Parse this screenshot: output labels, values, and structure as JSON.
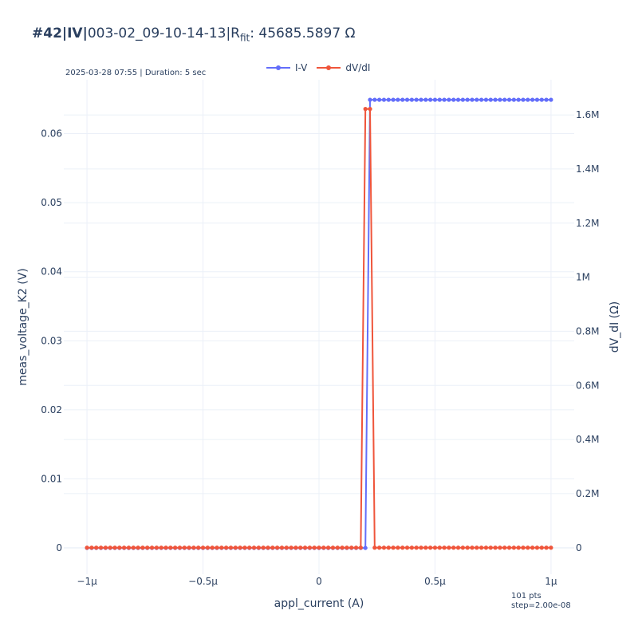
{
  "header": {
    "id_label": "#42|IV|",
    "name": "003-02_09-10-14-13|R",
    "fit_sub": "fit",
    "fit_value": ": 45685.5897 Ω"
  },
  "subnote": "2025-03-28 07:55 | Duration: 5 sec",
  "footnote": {
    "line1": "101 pts",
    "line2": "step=2.00e-08"
  },
  "chart_data": {
    "type": "line",
    "xlabel": "appl_current (A)",
    "ylabel": "meas_voltage_K2 (V)",
    "y2label": "dV_dI (Ω)",
    "xlim": [
      -1.1e-06,
      1.1e-06
    ],
    "ylim": [
      -0.0038,
      0.0678
    ],
    "y2lim": [
      -98000,
      1730000
    ],
    "x_ticks": [
      {
        "value": -1e-06,
        "label": "−1μ"
      },
      {
        "value": -5e-07,
        "label": "−0.5μ"
      },
      {
        "value": 0,
        "label": "0"
      },
      {
        "value": 5e-07,
        "label": "0.5μ"
      },
      {
        "value": 1e-06,
        "label": "1μ"
      }
    ],
    "y_ticks": [
      {
        "value": 0,
        "label": "0"
      },
      {
        "value": 0.01,
        "label": "0.01"
      },
      {
        "value": 0.02,
        "label": "0.02"
      },
      {
        "value": 0.03,
        "label": "0.03"
      },
      {
        "value": 0.04,
        "label": "0.04"
      },
      {
        "value": 0.05,
        "label": "0.05"
      },
      {
        "value": 0.06,
        "label": "0.06"
      }
    ],
    "y2_ticks": [
      {
        "value": 0,
        "label": "0"
      },
      {
        "value": 200000,
        "label": "0.2M"
      },
      {
        "value": 400000,
        "label": "0.4M"
      },
      {
        "value": 600000,
        "label": "0.6M"
      },
      {
        "value": 800000,
        "label": "0.8M"
      },
      {
        "value": 1000000,
        "label": "1M"
      },
      {
        "value": 1200000,
        "label": "1.2M"
      },
      {
        "value": 1400000,
        "label": "1.4M"
      },
      {
        "value": 1600000,
        "label": "1.6M"
      }
    ],
    "series": [
      {
        "name": "I-V",
        "color": "#636efa",
        "axis": "y",
        "x_start": -1e-06,
        "x_step": 2e-08,
        "count": 101,
        "segments": [
          {
            "from_index": 0,
            "to_index": 60,
            "value": 0
          },
          {
            "from_index": 61,
            "to_index": 100,
            "value": 0.0649
          }
        ]
      },
      {
        "name": "dV/dI",
        "color": "#ef553b",
        "axis": "y2",
        "x_start": -1e-06,
        "x_step": 2e-08,
        "count": 101,
        "segments": [
          {
            "from_index": 0,
            "to_index": 59,
            "value": 0
          },
          {
            "from_index": 60,
            "to_index": 61,
            "value": 1622000
          },
          {
            "from_index": 62,
            "to_index": 100,
            "value": 0
          }
        ]
      }
    ],
    "grid": true,
    "legend": "top-center"
  }
}
